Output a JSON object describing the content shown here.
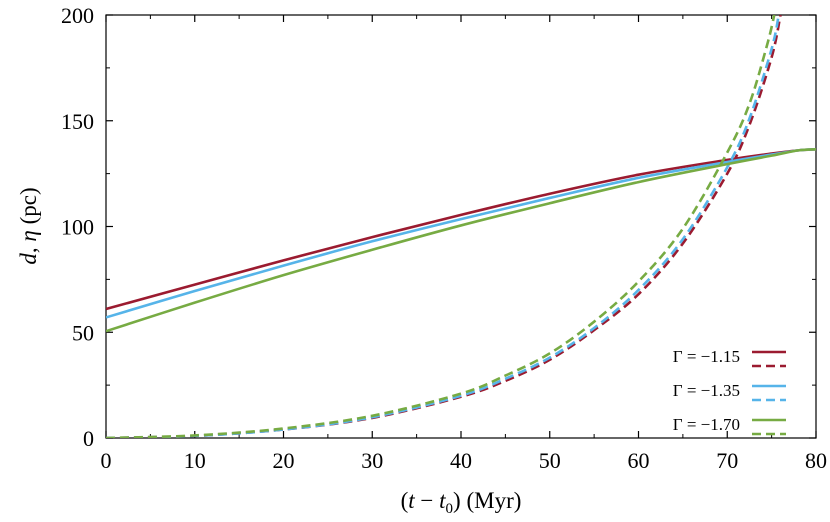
{
  "chart_data": {
    "type": "line",
    "xlabel": "(t − t0) (Myr)",
    "ylabel": "d, η (pc)",
    "xlim": [
      0,
      80
    ],
    "ylim": [
      0,
      200
    ],
    "xticks": [
      0,
      10,
      20,
      30,
      40,
      50,
      60,
      70,
      80
    ],
    "yticks": [
      0,
      50,
      100,
      150,
      200
    ],
    "grid": false,
    "legend_position": "bottom-right",
    "series": [
      {
        "name": "Γ = −1.15",
        "legend_label": "Γ = −1.15",
        "quantity": "d",
        "line_style": "solid",
        "color": "#9b1b30",
        "x": [
          0,
          10,
          20,
          30,
          40,
          50,
          60,
          70,
          75,
          78,
          80
        ],
        "y": [
          61,
          72.5,
          84,
          95,
          105.5,
          115.5,
          124.5,
          131.5,
          134.5,
          136,
          136.5
        ]
      },
      {
        "name": "Γ = −1.15",
        "legend_label": "",
        "quantity": "η",
        "line_style": "dashed",
        "color": "#9b1b30",
        "x": [
          0,
          10,
          20,
          30,
          40,
          45,
          50,
          55,
          60,
          65,
          70,
          72.5,
          75,
          76
        ],
        "y": [
          0,
          1,
          4,
          9.5,
          19.5,
          27,
          37,
          51,
          68,
          92,
          125,
          148,
          180,
          200
        ]
      },
      {
        "name": "Γ = −1.35",
        "legend_label": "Γ = −1.35",
        "quantity": "d",
        "line_style": "solid",
        "color": "#56b4e9",
        "x": [
          0,
          10,
          20,
          30,
          40,
          50,
          60,
          70,
          75,
          78,
          80
        ],
        "y": [
          57,
          69.5,
          81.5,
          93,
          103.5,
          113.5,
          123,
          130.5,
          134,
          136,
          136.5
        ]
      },
      {
        "name": "Γ = −1.35",
        "legend_label": "",
        "quantity": "η",
        "line_style": "dashed",
        "color": "#56b4e9",
        "x": [
          0,
          10,
          20,
          30,
          40,
          45,
          50,
          55,
          60,
          65,
          70,
          72.5,
          75,
          75.8
        ],
        "y": [
          0,
          1,
          4,
          9.8,
          20,
          28,
          38,
          52,
          70,
          94,
          128,
          151,
          184,
          200
        ]
      },
      {
        "name": "Γ = −1.70",
        "legend_label": "Γ = −1.70",
        "quantity": "d",
        "line_style": "solid",
        "color": "#77ab43",
        "x": [
          0,
          10,
          20,
          30,
          40,
          50,
          60,
          70,
          75,
          78,
          80
        ],
        "y": [
          50.5,
          64,
          77,
          89,
          100.5,
          111,
          121,
          129.5,
          133.5,
          136,
          136.5
        ]
      },
      {
        "name": "Γ = −1.70",
        "legend_label": "",
        "quantity": "η",
        "line_style": "dashed",
        "color": "#77ab43",
        "x": [
          0,
          10,
          20,
          30,
          40,
          45,
          50,
          55,
          60,
          65,
          70,
          72.5,
          74.5,
          75.3
        ],
        "y": [
          0,
          1.2,
          4.5,
          10.5,
          21,
          29.5,
          40,
          55,
          74,
          99,
          135,
          158,
          186,
          200
        ]
      }
    ]
  }
}
